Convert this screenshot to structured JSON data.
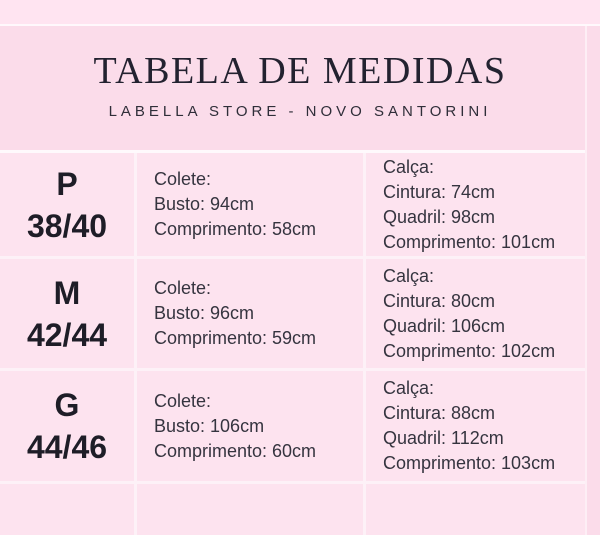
{
  "header": {
    "title": "TABELA DE MEDIDAS",
    "subtitle": "LABELLA STORE - NOVO SANTORINI"
  },
  "colors": {
    "page_background": "#fbdcea",
    "top_strip": "#ffe4f1",
    "cell_background": "#fde3ef",
    "divider_line": "#fdeaf3",
    "title_text": "#232230",
    "body_text": "#35343f"
  },
  "table": {
    "rows": [
      {
        "size_letter": "P",
        "size_numbers": "38/40",
        "colete_lines": [
          "Colete:",
          "Busto: 94cm",
          "Comprimento: 58cm"
        ],
        "calca_lines": [
          "Calça:",
          "Cintura: 74cm",
          "Quadril: 98cm",
          "Comprimento: 101cm"
        ]
      },
      {
        "size_letter": "M",
        "size_numbers": "42/44",
        "colete_lines": [
          "Colete:",
          "Busto: 96cm",
          "Comprimento: 59cm"
        ],
        "calca_lines": [
          "Calça:",
          "Cintura: 80cm",
          "Quadril: 106cm",
          "Comprimento: 102cm"
        ]
      },
      {
        "size_letter": "G",
        "size_numbers": "44/46",
        "colete_lines": [
          "Colete:",
          "Busto: 106cm",
          "Comprimento: 60cm"
        ],
        "calca_lines": [
          "Calça:",
          "Cintura: 88cm",
          "Quadril: 112cm",
          "Comprimento: 103cm"
        ]
      }
    ]
  }
}
